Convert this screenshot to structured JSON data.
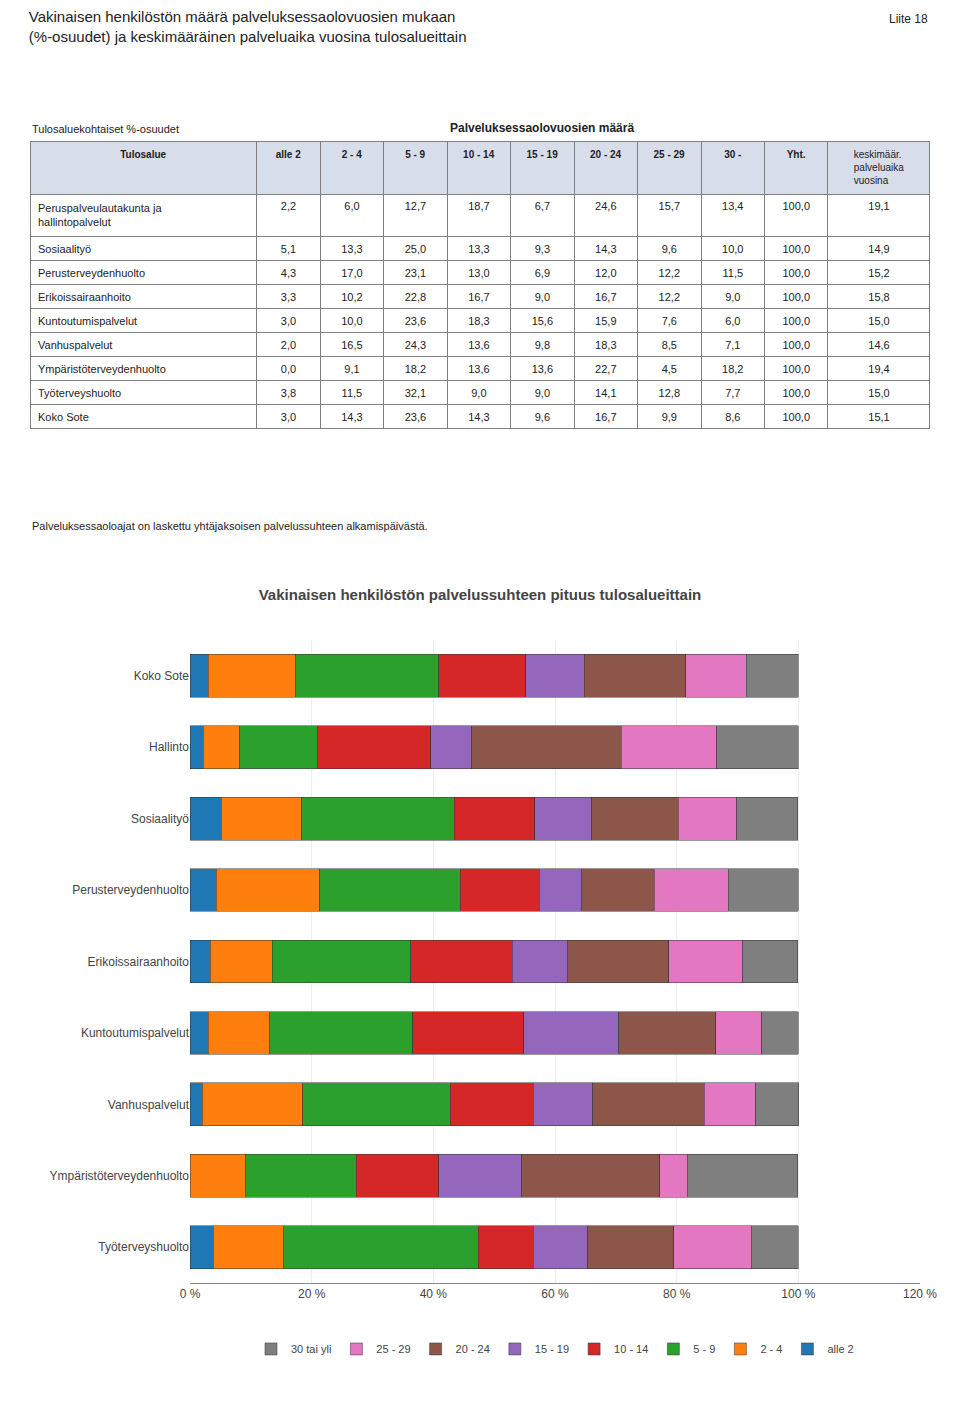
{
  "chart_data": [
    {
      "type": "table",
      "title": "Vakinaisen henkilöstön määrä palveluksessaolovuosien mukaan\n(%-osuudet) ja keskimääräinen palveluaika vuosina tulosalueittain",
      "annotations": [
        "Liite 18",
        "Palveluksessaoloajat on laskettu yhtäjaksoisen palvelussuhteen alkamispäivästä."
      ],
      "group_label": "Palveluksessaolovuosien määrä",
      "row_label": "Tulosalue",
      "unit_label": "Tulosaluekohtaiset %-osuudet",
      "categories": [
        "Peruspalveulautakunta ja\nhallintopalvelut",
        "Sosiaalityö",
        "Perusterveydenhuolto",
        "Erikoissairaanhoito",
        "Kuntoutumispalvelut",
        "Vanhuspalvelut",
        "Ympäristöterveydenhuolto",
        "Työterveyshuolto",
        "Koko Sote"
      ],
      "series": [
        {
          "name": "alle 2",
          "values": [
            2.2,
            5.1,
            4.3,
            3.3,
            3.0,
            2.0,
            0.0,
            3.8,
            3.0
          ],
          "value_labels": [
            "2,2",
            "5,1",
            "4,3",
            "3,3",
            "3,0",
            "2,0",
            "0,0",
            "3,8",
            "3,0"
          ]
        },
        {
          "name": "2 - 4",
          "values": [
            6.0,
            13.3,
            17.0,
            10.2,
            10.0,
            16.5,
            9.1,
            11.5,
            14.3
          ],
          "value_labels": [
            "6,0",
            "13,3",
            "17,0",
            "10,2",
            "10,0",
            "16,5",
            "9,1",
            "11,5",
            "14,3"
          ]
        },
        {
          "name": "5 - 9",
          "values": [
            12.7,
            25.0,
            23.1,
            22.8,
            23.6,
            24.3,
            18.2,
            32.1,
            23.6
          ],
          "value_labels": [
            "12,7",
            "25,0",
            "23,1",
            "22,8",
            "23,6",
            "24,3",
            "18,2",
            "32,1",
            "23,6"
          ]
        },
        {
          "name": "10 - 14",
          "values": [
            18.7,
            13.3,
            13.0,
            16.7,
            18.3,
            13.6,
            13.6,
            9.0,
            14.3
          ],
          "value_labels": [
            "18,7",
            "13,3",
            "13,0",
            "16,7",
            "18,3",
            "13,6",
            "13,6",
            "9,0",
            "14,3"
          ]
        },
        {
          "name": "15 - 19",
          "values": [
            6.7,
            9.3,
            6.9,
            9.0,
            15.6,
            9.8,
            13.6,
            9.0,
            9.6
          ],
          "value_labels": [
            "6,7",
            "9,3",
            "6,9",
            "9,0",
            "15,6",
            "9,8",
            "13,6",
            "9,0",
            "9,6"
          ]
        },
        {
          "name": "20 - 24",
          "values": [
            24.6,
            14.3,
            12.0,
            16.7,
            15.9,
            18.3,
            22.7,
            14.1,
            16.7
          ],
          "value_labels": [
            "24,6",
            "14,3",
            "12,0",
            "16,7",
            "15,9",
            "18,3",
            "22,7",
            "14,1",
            "16,7"
          ]
        },
        {
          "name": "25 - 29",
          "values": [
            15.7,
            9.6,
            12.2,
            12.2,
            7.6,
            8.5,
            4.5,
            12.8,
            9.9
          ],
          "value_labels": [
            "15,7",
            "9,6",
            "12,2",
            "12,2",
            "7,6",
            "8,5",
            "4,5",
            "12,8",
            "9,9"
          ]
        },
        {
          "name": "30 -",
          "values": [
            13.4,
            10.0,
            11.5,
            9.0,
            6.0,
            7.1,
            18.2,
            7.7,
            8.6
          ],
          "value_labels": [
            "13,4",
            "10,0",
            "11,5",
            "9,0",
            "6,0",
            "7,1",
            "18,2",
            "7,7",
            "8,6"
          ]
        },
        {
          "name": "Yht.",
          "values": [
            100.0,
            100.0,
            100.0,
            100.0,
            100.0,
            100.0,
            100.0,
            100.0,
            100.0
          ],
          "value_labels": [
            "100,0",
            "100,0",
            "100,0",
            "100,0",
            "100,0",
            "100,0",
            "100,0",
            "100,0",
            "100,0"
          ]
        },
        {
          "name": "keskimäär.\npalveluaika\nvuosina",
          "values": [
            19.1,
            14.9,
            15.2,
            15.8,
            15.0,
            14.6,
            19.4,
            15.0,
            15.1
          ],
          "value_labels": [
            "19,1",
            "14,9",
            "15,2",
            "15,8",
            "15,0",
            "14,6",
            "19,4",
            "15,0",
            "15,1"
          ]
        }
      ]
    },
    {
      "type": "bar",
      "title": "Vakinaisen henkilöstön palvelussuhteen pituus tulosalueittain",
      "orientation": "horizontal",
      "stacked": true,
      "grid": true,
      "legend": "bottom",
      "categories": [
        "Työterveyshuolto",
        "Ympäristöterveydenhuolto",
        "Vanhuspalvelut",
        "Kuntoutumispalvelut",
        "Erikoissairaanhoito",
        "Perusterveydenhuolto",
        "Sosiaalityö",
        "Hallinto",
        "Koko Sote"
      ],
      "series": [
        {
          "name": "alle 2",
          "values": [
            3.8,
            0.0,
            2.0,
            3.0,
            3.3,
            4.3,
            5.1,
            2.2,
            3.0
          ]
        },
        {
          "name": "2 - 4",
          "values": [
            11.5,
            9.1,
            16.5,
            10.0,
            10.2,
            17.0,
            13.3,
            6.0,
            14.3
          ]
        },
        {
          "name": "5 - 9",
          "values": [
            32.1,
            18.2,
            24.3,
            23.6,
            22.8,
            23.1,
            25.0,
            12.7,
            23.6
          ]
        },
        {
          "name": "10 - 14",
          "values": [
            9.0,
            13.6,
            13.6,
            18.3,
            16.7,
            13.0,
            13.3,
            18.7,
            14.3
          ]
        },
        {
          "name": "15 - 19",
          "values": [
            9.0,
            13.6,
            9.8,
            15.6,
            9.0,
            6.9,
            9.3,
            6.7,
            9.6
          ]
        },
        {
          "name": "20 - 24",
          "values": [
            14.1,
            22.7,
            18.3,
            15.9,
            16.7,
            12.0,
            14.3,
            24.6,
            16.7
          ]
        },
        {
          "name": "25 - 29",
          "values": [
            12.8,
            4.5,
            8.5,
            7.6,
            12.2,
            12.2,
            9.6,
            15.7,
            9.9
          ]
        },
        {
          "name": "30 tai yli",
          "values": [
            7.7,
            18.2,
            7.1,
            6.0,
            9.0,
            11.5,
            10.0,
            13.4,
            8.6
          ]
        }
      ],
      "xlim": [
        0,
        120
      ],
      "xticks": [
        {
          "value": 0,
          "label": "0 %"
        },
        {
          "value": 20,
          "label": "20 %"
        },
        {
          "value": 40,
          "label": "40 %"
        },
        {
          "value": 60,
          "label": "60 %"
        },
        {
          "value": 80,
          "label": "80 %"
        },
        {
          "value": 100,
          "label": "100 %"
        },
        {
          "value": 120,
          "label": "120 %"
        }
      ]
    }
  ]
}
